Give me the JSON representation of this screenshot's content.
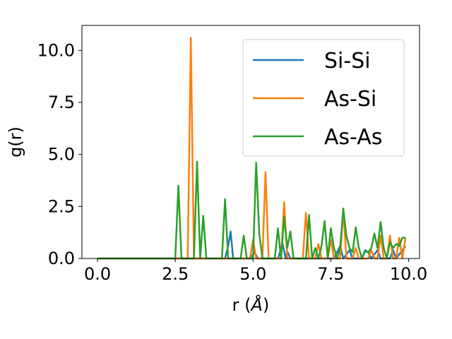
{
  "chart_data": {
    "type": "line",
    "xlabel_prefix": "r (",
    "xlabel_unit": "Å",
    "xlabel_suffix": ")",
    "ylabel": "g(r)",
    "xlim": [
      -0.5,
      10.35
    ],
    "ylim": [
      0,
      11.2
    ],
    "xticks": [
      0,
      2.5,
      5,
      7.5,
      10
    ],
    "xtick_labels": [
      "0.0",
      "2.5",
      "5.0",
      "7.5",
      "10.0"
    ],
    "yticks": [
      0,
      2.5,
      5,
      7.5,
      10
    ],
    "ytick_labels": [
      "0.0",
      "2.5",
      "5.0",
      "7.5",
      "10.0"
    ],
    "grid": false,
    "legend_position": "top-right",
    "series": [
      {
        "name": "Si-Si",
        "color": "#1f77b4",
        "points": [
          [
            0,
            0
          ],
          [
            4.1,
            0
          ],
          [
            4.2,
            0.6
          ],
          [
            4.28,
            1.3
          ],
          [
            4.36,
            0
          ],
          [
            4.9,
            0
          ],
          [
            5.05,
            0.3
          ],
          [
            5.15,
            0
          ],
          [
            5.8,
            0
          ],
          [
            5.95,
            0.7
          ],
          [
            6.05,
            0
          ],
          [
            6.1,
            0.35
          ],
          [
            6.2,
            0
          ],
          [
            7.6,
            0
          ],
          [
            7.8,
            0.6
          ],
          [
            7.9,
            0
          ],
          [
            8.1,
            0.4
          ],
          [
            8.2,
            0
          ],
          [
            8.5,
            0
          ],
          [
            8.6,
            0.4
          ],
          [
            8.7,
            0.3
          ],
          [
            8.8,
            0
          ],
          [
            9.0,
            0.4
          ],
          [
            9.1,
            0
          ],
          [
            9.4,
            0
          ],
          [
            9.5,
            0.4
          ],
          [
            9.6,
            0
          ],
          [
            9.9,
            0.6
          ]
        ]
      },
      {
        "name": "As-Si",
        "color": "#ff7f0e",
        "points": [
          [
            0,
            0
          ],
          [
            2.9,
            0
          ],
          [
            3.0,
            10.6
          ],
          [
            3.1,
            0
          ],
          [
            4.9,
            0
          ],
          [
            5.0,
            0.9
          ],
          [
            5.1,
            0
          ],
          [
            5.3,
            0
          ],
          [
            5.4,
            4.15
          ],
          [
            5.5,
            0
          ],
          [
            5.9,
            0
          ],
          [
            6.0,
            2.7
          ],
          [
            6.1,
            0
          ],
          [
            6.6,
            0
          ],
          [
            6.7,
            2.2
          ],
          [
            6.8,
            0
          ],
          [
            7.0,
            0
          ],
          [
            7.1,
            0.7
          ],
          [
            7.2,
            0
          ],
          [
            7.4,
            0
          ],
          [
            7.5,
            0.9
          ],
          [
            7.6,
            0
          ],
          [
            7.8,
            0
          ],
          [
            7.9,
            2.4
          ],
          [
            8.0,
            0
          ],
          [
            8.2,
            0
          ],
          [
            8.3,
            0.5
          ],
          [
            8.4,
            0
          ],
          [
            8.7,
            0
          ],
          [
            8.8,
            0.4
          ],
          [
            8.9,
            0
          ],
          [
            9.0,
            0
          ],
          [
            9.1,
            1.1
          ],
          [
            9.2,
            0
          ],
          [
            9.3,
            0
          ],
          [
            9.4,
            1.1
          ],
          [
            9.5,
            0
          ],
          [
            9.6,
            0
          ],
          [
            9.7,
            1.0
          ],
          [
            9.8,
            0
          ],
          [
            9.9,
            1.0
          ]
        ]
      },
      {
        "name": "As-As",
        "color": "#2ca02c",
        "points": [
          [
            0,
            0
          ],
          [
            2.5,
            0
          ],
          [
            2.6,
            3.5
          ],
          [
            2.7,
            0
          ],
          [
            3.1,
            0
          ],
          [
            3.2,
            4.65
          ],
          [
            3.3,
            0
          ],
          [
            3.4,
            2.05
          ],
          [
            3.5,
            0
          ],
          [
            4.0,
            0
          ],
          [
            4.1,
            2.85
          ],
          [
            4.2,
            0
          ],
          [
            4.6,
            0
          ],
          [
            4.7,
            1.1
          ],
          [
            4.8,
            0
          ],
          [
            5.0,
            0
          ],
          [
            5.1,
            4.6
          ],
          [
            5.2,
            1.2
          ],
          [
            5.3,
            0
          ],
          [
            5.7,
            0
          ],
          [
            5.8,
            1.45
          ],
          [
            5.9,
            0
          ],
          [
            6.0,
            2.0
          ],
          [
            6.1,
            0.5
          ],
          [
            6.2,
            1.3
          ],
          [
            6.3,
            0
          ],
          [
            6.7,
            0
          ],
          [
            6.8,
            2.1
          ],
          [
            6.9,
            0
          ],
          [
            7.0,
            0.5
          ],
          [
            7.1,
            0
          ],
          [
            7.2,
            0.6
          ],
          [
            7.3,
            1.8
          ],
          [
            7.4,
            0
          ],
          [
            7.5,
            1.45
          ],
          [
            7.6,
            0.5
          ],
          [
            7.7,
            0
          ],
          [
            7.8,
            0.5
          ],
          [
            7.9,
            2.4
          ],
          [
            8.0,
            1.1
          ],
          [
            8.1,
            0.5
          ],
          [
            8.2,
            0.3
          ],
          [
            8.3,
            1.5
          ],
          [
            8.4,
            0.5
          ],
          [
            8.5,
            0
          ],
          [
            8.6,
            0.35
          ],
          [
            8.7,
            0.3
          ],
          [
            8.8,
            0.5
          ],
          [
            8.9,
            1.2
          ],
          [
            9.0,
            0.5
          ],
          [
            9.1,
            1.75
          ],
          [
            9.2,
            0.5
          ],
          [
            9.3,
            0
          ],
          [
            9.4,
            0.8
          ],
          [
            9.5,
            0.5
          ],
          [
            9.6,
            0.7
          ],
          [
            9.7,
            0.6
          ],
          [
            9.8,
            1.0
          ],
          [
            9.9,
            1.0
          ]
        ]
      }
    ]
  }
}
